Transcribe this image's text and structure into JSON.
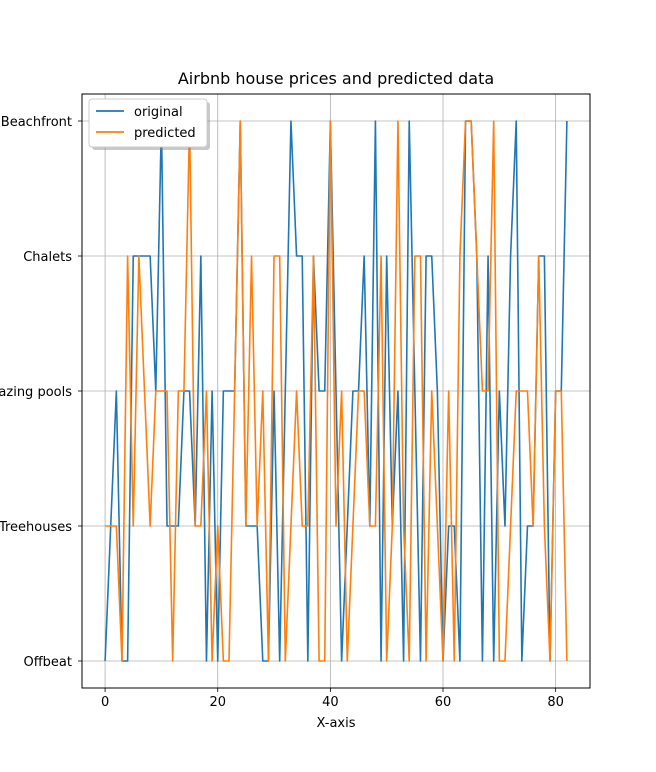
{
  "chart_data": {
    "type": "line",
    "title": "Airbnb house prices and predicted data",
    "xlabel": "X-axis",
    "ylabel": "",
    "xlim": [
      -4.1,
      86.1
    ],
    "ylim": [
      -0.2,
      4.2
    ],
    "xticks": [
      0,
      20,
      40,
      60,
      80
    ],
    "xtick_labels": [
      "0",
      "20",
      "40",
      "60",
      "80"
    ],
    "yticks": [
      0,
      1,
      2,
      3,
      4
    ],
    "categories": [
      "Offbeat",
      "Treehouses",
      "Amazing pools",
      "Chalets",
      "Beachfront"
    ],
    "grid": true,
    "legend_position": "top-left",
    "series": [
      {
        "name": "original",
        "color": "#1f77b4",
        "x": [
          0,
          1,
          2,
          3,
          4,
          5,
          6,
          7,
          8,
          9,
          10,
          11,
          12,
          13,
          14,
          15,
          16,
          17,
          18,
          19,
          20,
          21,
          22,
          23,
          24,
          25,
          26,
          27,
          28,
          29,
          30,
          31,
          32,
          33,
          34,
          35,
          36,
          37,
          38,
          39,
          40,
          41,
          42,
          43,
          44,
          45,
          46,
          47,
          48,
          49,
          50,
          51,
          52,
          53,
          54,
          55,
          56,
          57,
          58,
          59,
          60,
          61,
          62,
          63,
          64,
          65,
          66,
          67,
          68,
          69,
          70,
          71,
          72,
          73,
          74,
          75,
          76,
          77,
          78,
          79,
          80,
          81,
          82
        ],
        "values": [
          0,
          1,
          2,
          0,
          0,
          3,
          3,
          3,
          3,
          2,
          4,
          1,
          1,
          1,
          2,
          2,
          1,
          3,
          0,
          2,
          0,
          2,
          2,
          2,
          4,
          1,
          1,
          1,
          0,
          0,
          2,
          0,
          2,
          4,
          3,
          3,
          0,
          3,
          2,
          2,
          4,
          2,
          0,
          1,
          2,
          2,
          3,
          1,
          4,
          0,
          3,
          1,
          2,
          0,
          4,
          2,
          0,
          3,
          3,
          2,
          0,
          1,
          1,
          0,
          4,
          4,
          3,
          0,
          3,
          0,
          2,
          1,
          3,
          4,
          0,
          1,
          1,
          3,
          3,
          0,
          2,
          2,
          4
        ]
      },
      {
        "name": "predicted",
        "color": "#ff7f0e",
        "x": [
          0,
          1,
          2,
          3,
          4,
          5,
          6,
          7,
          8,
          9,
          10,
          11,
          12,
          13,
          14,
          15,
          16,
          17,
          18,
          19,
          20,
          21,
          22,
          23,
          24,
          25,
          26,
          27,
          28,
          29,
          30,
          31,
          32,
          33,
          34,
          35,
          36,
          37,
          38,
          39,
          40,
          41,
          42,
          43,
          44,
          45,
          46,
          47,
          48,
          49,
          50,
          51,
          52,
          53,
          54,
          55,
          56,
          57,
          58,
          59,
          60,
          61,
          62,
          63,
          64,
          65,
          66,
          67,
          68,
          69,
          70,
          71,
          72,
          73,
          74,
          75,
          76,
          77,
          78,
          79,
          80,
          81,
          82
        ],
        "values": [
          1,
          1,
          1,
          0,
          3,
          1,
          3,
          2,
          1,
          2,
          2,
          2,
          0,
          2,
          2,
          4,
          1,
          1,
          2,
          0,
          1,
          0,
          0,
          2,
          4,
          1,
          3,
          1,
          2,
          0,
          3,
          3,
          0,
          1,
          2,
          1,
          1,
          3,
          0,
          0,
          4,
          1,
          2,
          0,
          1,
          2,
          2,
          1,
          1,
          3,
          0,
          1,
          4,
          1,
          0,
          3,
          3,
          0,
          2,
          1,
          0,
          2,
          0,
          3,
          4,
          4,
          3,
          2,
          2,
          4,
          0,
          0,
          1,
          2,
          2,
          2,
          1,
          3,
          1,
          0,
          2,
          2,
          0
        ]
      }
    ]
  }
}
